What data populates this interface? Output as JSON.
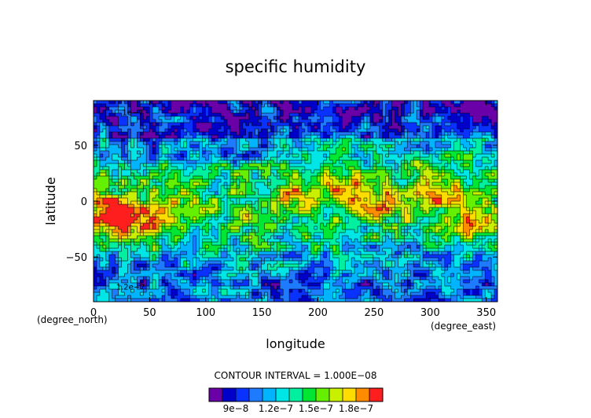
{
  "chart_data": {
    "type": "heatmap",
    "title": "specific humidity",
    "xlabel": "longitude",
    "ylabel": "latitude",
    "x_unit": "(degree_east)",
    "y_unit": "(degree_north)",
    "xlim": [
      0,
      360
    ],
    "ylim": [
      -90,
      90
    ],
    "x_ticks": [
      0,
      50,
      100,
      150,
      200,
      250,
      300,
      350
    ],
    "y_ticks": [
      50,
      0,
      -50
    ],
    "x_tick_labels": [
      "0",
      "50",
      "100",
      "150",
      "200",
      "250",
      "300",
      "350"
    ],
    "y_tick_labels": [
      "50",
      "0",
      "−50"
    ],
    "contour_interval_text": "CONTOUR INTERVAL = 1.000E−08",
    "contour_interval": 1e-08,
    "contour_labels": [
      {
        "text": "1e−7",
        "lon": 35,
        "lat": 77
      },
      {
        "text": "1.2e−7",
        "lon": 33,
        "lat": -79
      }
    ],
    "colorbar": {
      "levels": [
        7e-08,
        8e-08,
        9e-08,
        1e-07,
        1.1e-07,
        1.2e-07,
        1.3e-07,
        1.4e-07,
        1.5e-07,
        1.6e-07,
        1.7e-07,
        1.8e-07,
        1.9e-07
      ],
      "colors": [
        "#6a00a8",
        "#0000c8",
        "#0a32ff",
        "#1e7bff",
        "#00b4ff",
        "#00e6e6",
        "#00f0a0",
        "#00e632",
        "#64f000",
        "#c8f000",
        "#ffdc00",
        "#ff8c00",
        "#ff1e1e"
      ],
      "tick_labels": [
        "9e−8",
        "1.2e−7",
        "1.5e−7",
        "1.8e−7"
      ],
      "tick_values": [
        9e-08,
        1.2e-07,
        1.5e-07,
        1.8e-07
      ]
    },
    "grid": false,
    "colors": {
      "axis": "#000000",
      "background": "#ffffff"
    }
  }
}
